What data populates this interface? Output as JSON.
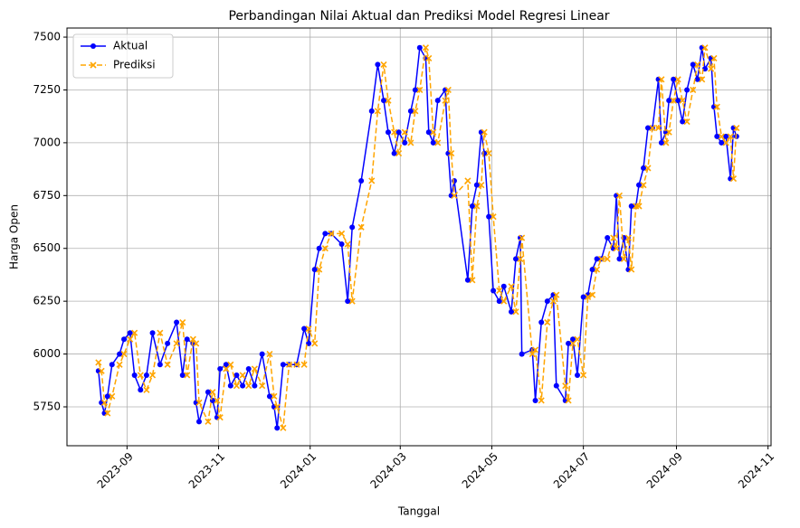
{
  "chart_data": {
    "type": "line",
    "title": "Perbandingan Nilai Aktual dan Prediksi Model Regresi Linear",
    "x_label": "Tanggal",
    "y_label": "Harga Open",
    "x": [
      19582,
      19584,
      19586,
      19588,
      19591,
      19596,
      19599,
      19603,
      19606,
      19610,
      19614,
      19618,
      19623,
      19628,
      19634,
      19638,
      19641,
      19645,
      19647,
      19649,
      19655,
      19658,
      19661,
      19663,
      19667,
      19670,
      19674,
      19678,
      19682,
      19686,
      19691,
      19696,
      19699,
      19701,
      19705,
      19709,
      19714,
      19719,
      19722,
      19726,
      19729,
      19733,
      19737,
      19744,
      19748,
      19751,
      19757,
      19764,
      19768,
      19772,
      19775,
      19779,
      19782,
      19786,
      19790,
      19793,
      19796,
      19800,
      19802,
      19805,
      19808,
      19813,
      19815,
      19817,
      19819,
      19828,
      19831,
      19834,
      19837,
      19839,
      19842,
      19845,
      19849,
      19852,
      19857,
      19860,
      19863,
      19864,
      19871,
      19873,
      19877,
      19881,
      19885,
      19887,
      19893,
      19895,
      19898,
      19901,
      19905,
      19908,
      19911,
      19914,
      19917,
      19921,
      19925,
      19927,
      19929,
      19932,
      19935,
      19937,
      19940,
      19942,
      19945,
      19948,
      19951,
      19955,
      19957,
      19960,
      19962,
      19965,
      19968,
      19971,
      19974,
      19978,
      19981,
      19984,
      19986,
      19990,
      19992,
      19994,
      19997,
      20000,
      20003,
      20005,
      20007
    ],
    "series": [
      {
        "name": "Aktual",
        "color": "#0000ff",
        "marker": "o",
        "dashed": false,
        "values": [
          5920,
          5770,
          5720,
          5800,
          5950,
          6000,
          6070,
          6100,
          5900,
          5830,
          5900,
          6100,
          5950,
          6050,
          6150,
          5900,
          6070,
          6050,
          5770,
          5680,
          5820,
          5780,
          5700,
          5930,
          5950,
          5850,
          5900,
          5850,
          5930,
          5850,
          6000,
          5800,
          5750,
          5650,
          5950,
          5950,
          5950,
          6120,
          6050,
          6400,
          6500,
          6570,
          6570,
          6520,
          6250,
          6600,
          6820,
          7150,
          7370,
          7200,
          7050,
          6950,
          7050,
          7000,
          7150,
          7250,
          7450,
          7400,
          7050,
          7000,
          7200,
          7250,
          6950,
          6750,
          6820,
          6350,
          6700,
          6800,
          7050,
          6950,
          6650,
          6300,
          6250,
          6320,
          6200,
          6450,
          6550,
          6000,
          6020,
          5780,
          6150,
          6250,
          6280,
          5850,
          5780,
          6050,
          6070,
          5900,
          6270,
          6280,
          6400,
          6450,
          6450,
          6550,
          6500,
          6750,
          6450,
          6550,
          6400,
          6700,
          6700,
          6800,
          6880,
          7070,
          7070,
          7300,
          7000,
          7050,
          7200,
          7300,
          7200,
          7100,
          7250,
          7370,
          7300,
          7450,
          7350,
          7400,
          7170,
          7030,
          7000,
          7030,
          6830,
          7070,
          7030
        ]
      },
      {
        "name": "Prediksi",
        "color": "#ffa500",
        "marker": "x",
        "dashed": true,
        "values": [
          5960,
          5920,
          5770,
          5720,
          5800,
          5950,
          6000,
          6070,
          6100,
          5900,
          5830,
          5900,
          6100,
          5950,
          6050,
          6150,
          5900,
          6070,
          6050,
          5770,
          5680,
          5820,
          5780,
          5700,
          5930,
          5950,
          5850,
          5900,
          5850,
          5930,
          5850,
          6000,
          5800,
          5750,
          5650,
          5950,
          5950,
          5950,
          6120,
          6050,
          6400,
          6500,
          6570,
          6570,
          6520,
          6250,
          6600,
          6820,
          7150,
          7370,
          7200,
          7050,
          6950,
          7050,
          7000,
          7150,
          7250,
          7450,
          7400,
          7050,
          7000,
          7200,
          7250,
          6950,
          6750,
          6820,
          6350,
          6700,
          6800,
          7050,
          6950,
          6650,
          6300,
          6250,
          6320,
          6200,
          6450,
          6550,
          6000,
          6020,
          5780,
          6150,
          6250,
          6280,
          5850,
          5780,
          6050,
          6070,
          5900,
          6270,
          6280,
          6400,
          6450,
          6450,
          6550,
          6500,
          6750,
          6450,
          6550,
          6400,
          6700,
          6700,
          6800,
          6880,
          7070,
          7070,
          7300,
          7000,
          7050,
          7200,
          7300,
          7200,
          7100,
          7250,
          7370,
          7300,
          7450,
          7350,
          7400,
          7170,
          7030,
          7000,
          7030,
          6830,
          7070
        ]
      }
    ],
    "xlim": [
      19561,
      20030
    ],
    "xticks": [
      {
        "value": 19601,
        "label": "2023-09"
      },
      {
        "value": 19662,
        "label": "2023-11"
      },
      {
        "value": 19723,
        "label": "2024-01"
      },
      {
        "value": 19783,
        "label": "2024-03"
      },
      {
        "value": 19844,
        "label": "2024-05"
      },
      {
        "value": 19905,
        "label": "2024-07"
      },
      {
        "value": 19967,
        "label": "2024-09"
      },
      {
        "value": 20028,
        "label": "2024-11"
      }
    ],
    "ylim": [
      5566,
      7543
    ],
    "yticks": [
      5750,
      6000,
      6250,
      6500,
      6750,
      7000,
      7250,
      7500
    ],
    "grid": true,
    "legend": "upper-left"
  }
}
